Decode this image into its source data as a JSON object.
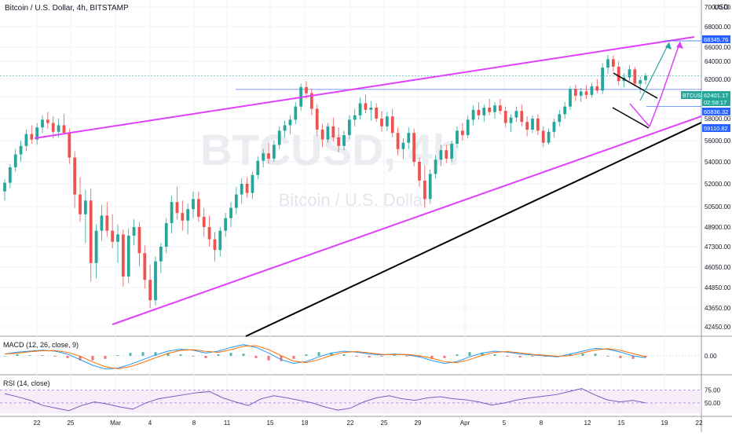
{
  "header": {
    "symbol": "Bitcoin / U.S. Dollar, 4h, BITSTAMP",
    "currency": "USD"
  },
  "watermark": {
    "ticker": "BTCUSD, 4h",
    "name": "Bitcoin / U.S. Dollar"
  },
  "chart_data": [
    {
      "type": "candlestick",
      "title": "Bitcoin / U.S. Dollar, 4h, BITSTAMP",
      "price_ticks": [
        "70000.00",
        "68000.00",
        "66000.00",
        "64000.00",
        "62000.00",
        "60000.00",
        "58000.00",
        "56000.00",
        "54000.00",
        "52000.00",
        "50500.00",
        "48900.00",
        "47300.00",
        "46050.00",
        "44850.00",
        "43650.00",
        "42450.00"
      ],
      "ylim": [
        42450,
        71000
      ],
      "time_ticks": [
        "22",
        "25",
        "Mar",
        "4",
        "8",
        "11",
        "15",
        "18",
        "22",
        "25",
        "29",
        "Apr",
        "5",
        "8",
        "12",
        "15",
        "19",
        "22"
      ],
      "price_labels": [
        {
          "text": "68345.76",
          "value": 68345.76,
          "color": "#2962ff"
        },
        {
          "text": "BTCUSD",
          "value": 62401.17,
          "color": "#26a69a"
        },
        {
          "text": "62401.17",
          "value": 62401.17,
          "color": "#26a69a"
        },
        {
          "text": "02:58:17",
          "value": 62401.17,
          "color": "#26a69a"
        },
        {
          "text": "60836.32",
          "value": 60836.32,
          "color": "#2962ff"
        },
        {
          "text": "59110.82",
          "value": 59110.82,
          "color": "#2962ff"
        }
      ],
      "candles": [
        [
          51500,
          52400,
          50900,
          52100
        ],
        [
          52100,
          53800,
          51700,
          53500
        ],
        [
          53500,
          55200,
          53100,
          54700
        ],
        [
          54700,
          56000,
          54000,
          55500
        ],
        [
          55500,
          57000,
          55000,
          56600
        ],
        [
          56600,
          57400,
          55700,
          56100
        ],
        [
          56100,
          57600,
          55600,
          57200
        ],
        [
          57200,
          58300,
          56700,
          57900
        ],
        [
          57900,
          58600,
          57100,
          57600
        ],
        [
          57600,
          58200,
          56200,
          56800
        ],
        [
          56800,
          58000,
          56300,
          57400
        ],
        [
          57400,
          58400,
          56900,
          56700
        ],
        [
          56700,
          57100,
          53800,
          54400
        ],
        [
          54400,
          55000,
          50400,
          51300
        ],
        [
          51300,
          52600,
          49300,
          49900
        ],
        [
          49900,
          51600,
          47600,
          50900
        ],
        [
          50900,
          51700,
          45200,
          46300
        ],
        [
          46300,
          49100,
          45400,
          48600
        ],
        [
          48600,
          50600,
          47800,
          49800
        ],
        [
          49800,
          50800,
          48100,
          48600
        ],
        [
          48600,
          49900,
          47200,
          47700
        ],
        [
          47700,
          49100,
          46300,
          48300
        ],
        [
          48300,
          48700,
          44900,
          45500
        ],
        [
          45500,
          48800,
          45100,
          48200
        ],
        [
          48200,
          49500,
          47400,
          48900
        ],
        [
          48900,
          49300,
          46100,
          46900
        ],
        [
          46900,
          47400,
          44800,
          45300
        ],
        [
          45300,
          46200,
          43650,
          44100
        ],
        [
          44100,
          46700,
          43800,
          46400
        ],
        [
          46400,
          47600,
          45700,
          47300
        ],
        [
          47300,
          49600,
          46900,
          49200
        ],
        [
          49200,
          51200,
          48400,
          50800
        ],
        [
          50800,
          51800,
          49500,
          50000
        ],
        [
          50000,
          50900,
          48600,
          49400
        ],
        [
          49400,
          50700,
          48300,
          50300
        ],
        [
          50300,
          51500,
          49600,
          51000
        ],
        [
          51000,
          51500,
          49300,
          49700
        ],
        [
          49700,
          50400,
          48100,
          48900
        ],
        [
          48900,
          49800,
          47300,
          47900
        ],
        [
          47900,
          48500,
          46400,
          47100
        ],
        [
          47100,
          48900,
          46700,
          48600
        ],
        [
          48600,
          50000,
          48100,
          49600
        ],
        [
          49600,
          50800,
          48900,
          50400
        ],
        [
          50400,
          51800,
          49900,
          51300
        ],
        [
          51300,
          52500,
          50700,
          52000
        ],
        [
          52000,
          52600,
          51100,
          51400
        ],
        [
          51400,
          53100,
          51000,
          52800
        ],
        [
          52800,
          54500,
          52400,
          54100
        ],
        [
          54100,
          55200,
          53500,
          54800
        ],
        [
          54800,
          55800,
          53800,
          54300
        ],
        [
          54300,
          56000,
          54000,
          55600
        ],
        [
          55600,
          57300,
          55200,
          56900
        ],
        [
          56900,
          57800,
          56300,
          57400
        ],
        [
          57400,
          58300,
          56600,
          57900
        ],
        [
          57900,
          59500,
          57500,
          59100
        ],
        [
          59100,
          61500,
          58700,
          61100
        ],
        [
          61100,
          61800,
          59800,
          60400
        ],
        [
          60400,
          60900,
          58300,
          58900
        ],
        [
          58900,
          59300,
          56400,
          57000
        ],
        [
          57000,
          57500,
          55400,
          56100
        ],
        [
          56100,
          57600,
          55800,
          57300
        ],
        [
          57300,
          58100,
          55900,
          56300
        ],
        [
          56300,
          57200,
          54900,
          55500
        ],
        [
          55500,
          56900,
          55100,
          56500
        ],
        [
          56500,
          58300,
          56100,
          57900
        ],
        [
          57900,
          58900,
          57300,
          58300
        ],
        [
          58300,
          59900,
          57900,
          59400
        ],
        [
          59400,
          60200,
          58500,
          58800
        ],
        [
          58800,
          59600,
          57800,
          59000
        ],
        [
          59000,
          59400,
          57700,
          58000
        ],
        [
          58000,
          58700,
          56800,
          57300
        ],
        [
          57300,
          58600,
          56900,
          58200
        ],
        [
          58200,
          58900,
          56300,
          56700
        ],
        [
          56700,
          57200,
          54600,
          55200
        ],
        [
          55200,
          56200,
          54300,
          55800
        ],
        [
          55800,
          57200,
          55200,
          56700
        ],
        [
          56700,
          57100,
          53600,
          54000
        ],
        [
          54000,
          54400,
          51800,
          52300
        ],
        [
          52300,
          53700,
          50400,
          51000
        ],
        [
          51000,
          53300,
          50700,
          52900
        ],
        [
          52900,
          54600,
          52500,
          54200
        ],
        [
          54200,
          55600,
          53600,
          55100
        ],
        [
          55100,
          55600,
          53900,
          54300
        ],
        [
          54300,
          56000,
          54000,
          55700
        ],
        [
          55700,
          57300,
          55300,
          56900
        ],
        [
          56900,
          57600,
          56000,
          56500
        ],
        [
          56500,
          58300,
          56200,
          57900
        ],
        [
          57900,
          59200,
          57400,
          58800
        ],
        [
          58800,
          59500,
          57900,
          58300
        ],
        [
          58300,
          59300,
          57700,
          59000
        ],
        [
          59000,
          59800,
          58300,
          58600
        ],
        [
          58600,
          59500,
          58000,
          59200
        ],
        [
          59200,
          59800,
          58400,
          58700
        ],
        [
          58700,
          59100,
          57200,
          57600
        ],
        [
          57600,
          58400,
          56800,
          58100
        ],
        [
          58100,
          59100,
          57700,
          58700
        ],
        [
          58700,
          59300,
          57300,
          57700
        ],
        [
          57700,
          58200,
          56400,
          57000
        ],
        [
          57000,
          58300,
          56700,
          58000
        ],
        [
          58000,
          58400,
          56500,
          56900
        ],
        [
          56900,
          57300,
          55400,
          55800
        ],
        [
          55800,
          57100,
          55600,
          56800
        ],
        [
          56800,
          58000,
          56300,
          57700
        ],
        [
          57700,
          58800,
          57300,
          58400
        ],
        [
          58400,
          59500,
          58000,
          59100
        ],
        [
          59100,
          61200,
          58800,
          60900
        ],
        [
          60900,
          61400,
          59600,
          60100
        ],
        [
          60100,
          61000,
          59500,
          60600
        ],
        [
          60600,
          61300,
          59800,
          60200
        ],
        [
          60200,
          61600,
          59900,
          61200
        ],
        [
          61200,
          62000,
          60400,
          60700
        ],
        [
          60700,
          63800,
          60300,
          63300
        ],
        [
          63300,
          64900,
          62600,
          64300
        ],
        [
          64300,
          64800,
          62900,
          63400
        ],
        [
          63400,
          64000,
          61300,
          61800
        ],
        [
          61800,
          62700,
          61100,
          62200
        ],
        [
          62200,
          63600,
          61800,
          63100
        ],
        [
          63100,
          63400,
          61200,
          61500
        ],
        [
          61500,
          62300,
          60400,
          61900
        ],
        [
          61900,
          62700,
          61400,
          62401
        ]
      ]
    },
    {
      "type": "line",
      "title": "MACD (12, 26, close, 9)",
      "yticks": [
        "0.00"
      ],
      "series": [
        {
          "values": [
            0.2,
            0.4,
            0.5,
            0.6,
            0.5,
            0.2,
            -0.4,
            -1.0,
            -1.4,
            -1.3,
            -0.9,
            -0.4,
            0.1,
            0.5,
            0.7,
            0.6,
            0.3,
            0.5,
            0.9,
            1.2,
            0.9,
            0.3,
            -0.4,
            -0.8,
            -0.6,
            -0.1,
            0.3,
            0.5,
            0.4,
            0.2,
            0.1,
            0.2,
            0.1,
            -0.1,
            -0.5,
            -0.8,
            -0.6,
            -0.1,
            0.3,
            0.5,
            0.4,
            0.2,
            0.1,
            0.0,
            -0.1,
            0.2,
            0.5,
            0.8,
            0.7,
            0.4,
            0.0,
            -0.2
          ]
        }
      ]
    },
    {
      "type": "line",
      "title": "RSI (14, close)",
      "yticks": [
        "75.00",
        "50.00"
      ],
      "series": [
        {
          "values": [
            68,
            62,
            55,
            45,
            40,
            35,
            45,
            52,
            48,
            42,
            38,
            50,
            58,
            62,
            66,
            70,
            72,
            60,
            52,
            45,
            58,
            64,
            60,
            55,
            50,
            42,
            36,
            40,
            52,
            60,
            64,
            58,
            55,
            60,
            62,
            58,
            56,
            52,
            46,
            50,
            56,
            60,
            63,
            66,
            72,
            78,
            66,
            56,
            52,
            55,
            50
          ]
        }
      ]
    }
  ],
  "drawings": [
    {
      "label": "upper wedge trendline",
      "color": "#e040fb"
    },
    {
      "label": "lower wedge trendline",
      "color": "#e040fb"
    },
    {
      "label": "long support trendline",
      "color": "#000000"
    },
    {
      "label": "projection arrow",
      "color": "#26a69a"
    }
  ]
}
